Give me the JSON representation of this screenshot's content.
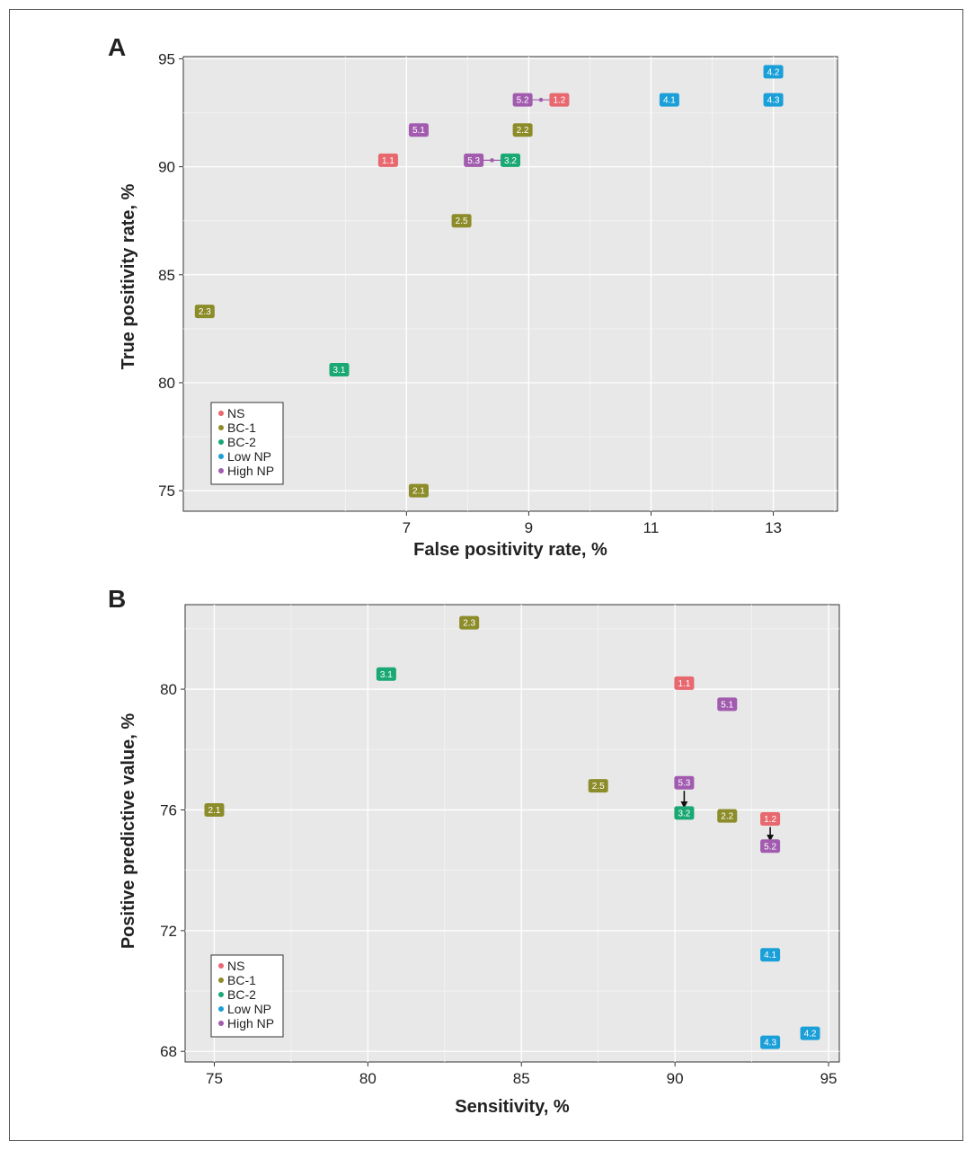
{
  "colors": {
    "NS": "#e8686f",
    "BC-1": "#8c8c2a",
    "BC-2": "#1aa874",
    "Low NP": "#1b9fd8",
    "High NP": "#a25caf",
    "panel_bg": "#e8e8e8",
    "grid": "#ffffff"
  },
  "legend": {
    "entries": [
      "NS",
      "BC-1",
      "BC-2",
      "Low NP",
      "High NP"
    ],
    "placement": "bottom-left"
  },
  "chart_data": [
    {
      "type": "scatter",
      "panel_label": "A",
      "xlabel": "False positivity rate, %",
      "ylabel": "True positivity rate, %",
      "xlim": [
        3.35,
        14.05
      ],
      "ylim": [
        74.05,
        95.1
      ],
      "xticks": [
        7,
        9,
        11,
        13
      ],
      "yticks": [
        75,
        80,
        85,
        90,
        95
      ],
      "points": [
        {
          "label": "1.1",
          "group": "NS",
          "x": 6.7,
          "y": 90.3
        },
        {
          "label": "1.2",
          "group": "NS",
          "x": 9.5,
          "y": 93.1
        },
        {
          "label": "2.1",
          "group": "BC-1",
          "x": 7.2,
          "y": 75.0
        },
        {
          "label": "2.2",
          "group": "BC-1",
          "x": 8.9,
          "y": 91.7
        },
        {
          "label": "2.3",
          "group": "BC-1",
          "x": 3.7,
          "y": 83.3
        },
        {
          "label": "2.5",
          "group": "BC-1",
          "x": 7.9,
          "y": 87.5
        },
        {
          "label": "3.1",
          "group": "BC-2",
          "x": 5.9,
          "y": 80.6
        },
        {
          "label": "3.2",
          "group": "BC-2",
          "x": 8.7,
          "y": 90.3
        },
        {
          "label": "4.1",
          "group": "Low NP",
          "x": 11.3,
          "y": 93.1
        },
        {
          "label": "4.2",
          "group": "Low NP",
          "x": 13.0,
          "y": 94.4
        },
        {
          "label": "4.3",
          "group": "Low NP",
          "x": 13.0,
          "y": 93.1
        },
        {
          "label": "5.1",
          "group": "High NP",
          "x": 7.2,
          "y": 91.7
        },
        {
          "label": "5.2",
          "group": "High NP",
          "x": 8.9,
          "y": 93.1
        },
        {
          "label": "5.3",
          "group": "High NP",
          "x": 8.1,
          "y": 90.3
        }
      ],
      "connectors": [
        {
          "from": "5.2",
          "to": "1.2"
        },
        {
          "from": "5.3",
          "to": "3.2"
        }
      ]
    },
    {
      "type": "scatter",
      "panel_label": "B",
      "xlabel": "Sensitivity, %",
      "ylabel": "Positive predictive value, %",
      "xlim": [
        74.05,
        95.35
      ],
      "ylim": [
        67.65,
        82.8
      ],
      "xticks": [
        75,
        80,
        85,
        90,
        95
      ],
      "yticks": [
        68,
        72,
        76,
        80
      ],
      "points": [
        {
          "label": "1.1",
          "group": "NS",
          "x": 90.3,
          "y": 80.2
        },
        {
          "label": "1.2",
          "group": "NS",
          "x": 93.1,
          "y": 75.7
        },
        {
          "label": "2.1",
          "group": "BC-1",
          "x": 75.0,
          "y": 76.0
        },
        {
          "label": "2.2",
          "group": "BC-1",
          "x": 91.7,
          "y": 75.8
        },
        {
          "label": "2.3",
          "group": "BC-1",
          "x": 83.3,
          "y": 82.2
        },
        {
          "label": "2.5",
          "group": "BC-1",
          "x": 87.5,
          "y": 76.8
        },
        {
          "label": "3.1",
          "group": "BC-2",
          "x": 80.6,
          "y": 80.5
        },
        {
          "label": "3.2",
          "group": "BC-2",
          "x": 90.3,
          "y": 75.9
        },
        {
          "label": "4.1",
          "group": "Low NP",
          "x": 93.1,
          "y": 71.2
        },
        {
          "label": "4.2",
          "group": "Low NP",
          "x": 94.4,
          "y": 68.6
        },
        {
          "label": "4.3",
          "group": "Low NP",
          "x": 93.1,
          "y": 68.3
        },
        {
          "label": "5.1",
          "group": "High NP",
          "x": 91.7,
          "y": 79.5
        },
        {
          "label": "5.2",
          "group": "High NP",
          "x": 93.1,
          "y": 74.8
        },
        {
          "label": "5.3",
          "group": "High NP",
          "x": 90.3,
          "y": 76.9
        }
      ],
      "arrows": [
        {
          "from": "5.3",
          "to": "3.2"
        },
        {
          "from": "1.2",
          "to": "5.2"
        }
      ]
    }
  ]
}
